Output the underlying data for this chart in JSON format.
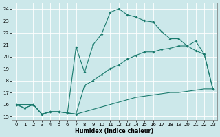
{
  "xlabel": "Humidex (Indice chaleur)",
  "bg_color": "#cce8ea",
  "line_color": "#1b7b6e",
  "xlim_min": -0.5,
  "xlim_max": 23.5,
  "ylim_min": 14.7,
  "ylim_max": 24.5,
  "xticks": [
    0,
    1,
    2,
    3,
    4,
    5,
    6,
    7,
    8,
    9,
    10,
    11,
    12,
    13,
    14,
    15,
    16,
    17,
    18,
    19,
    20,
    21,
    22,
    23
  ],
  "yticks": [
    15,
    16,
    17,
    18,
    19,
    20,
    21,
    22,
    23,
    24
  ],
  "curve1_x": [
    0,
    1,
    2,
    3,
    4,
    5,
    6,
    7,
    8,
    9,
    10,
    11,
    12,
    13,
    14,
    15,
    16,
    17,
    18,
    19,
    20,
    21,
    22,
    23
  ],
  "curve1_y": [
    16.0,
    15.7,
    16.0,
    15.2,
    15.4,
    15.4,
    15.3,
    15.2,
    15.4,
    15.6,
    15.8,
    16.0,
    16.2,
    16.4,
    16.6,
    16.7,
    16.8,
    16.9,
    17.0,
    17.0,
    17.1,
    17.2,
    17.3,
    17.3
  ],
  "curve2_x": [
    0,
    1,
    2,
    3,
    4,
    5,
    6,
    7,
    8,
    9,
    10,
    11,
    12,
    13,
    14,
    15,
    16,
    17,
    18,
    19,
    20,
    21,
    22,
    23
  ],
  "curve2_y": [
    16.0,
    15.7,
    16.0,
    15.2,
    15.4,
    15.4,
    15.3,
    15.2,
    17.6,
    18.0,
    18.5,
    19.0,
    19.3,
    19.8,
    20.1,
    20.4,
    20.4,
    20.6,
    20.7,
    20.9,
    20.9,
    20.5,
    20.2,
    17.3
  ],
  "curve3_x": [
    0,
    2,
    3,
    4,
    5,
    6,
    7,
    8,
    9,
    10,
    11,
    12,
    13,
    14,
    15,
    16,
    17,
    18,
    19,
    20,
    21,
    22,
    23
  ],
  "curve3_y": [
    16.0,
    16.0,
    15.2,
    15.4,
    15.4,
    15.3,
    20.8,
    18.7,
    21.0,
    21.9,
    23.7,
    24.0,
    23.5,
    23.3,
    23.0,
    22.9,
    22.1,
    21.5,
    21.5,
    20.9,
    21.3,
    20.2,
    17.3
  ]
}
